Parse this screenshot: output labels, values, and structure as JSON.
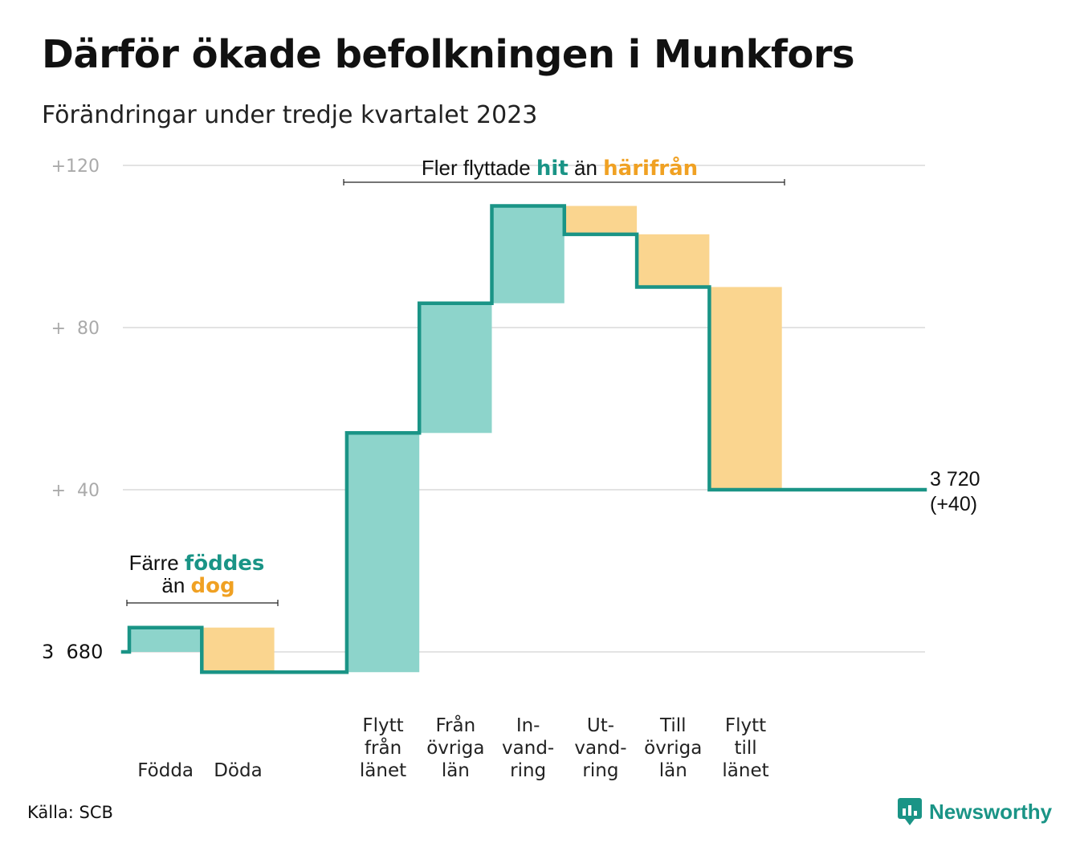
{
  "header": {
    "title": "Därför ökade befolkningen i Munkfors",
    "subtitle": "Förändringar under tredje kvartalet 2023"
  },
  "colors": {
    "inflow": "#8dd4cb",
    "outflow": "#fad58f",
    "line": "#1a9486",
    "inflow_text": "#1a9486",
    "outflow_text": "#f0a123",
    "grid": "#e3e3e3"
  },
  "chart_data": {
    "type": "waterfall",
    "base_value": 3680,
    "base_label": "3  680",
    "y_ticks": [
      {
        "value": 40,
        "label": "+  40"
      },
      {
        "value": 80,
        "label": "+  80"
      },
      {
        "value": 120,
        "label": "+120"
      }
    ],
    "ylim": [
      -5,
      122
    ],
    "steps": [
      {
        "category": [
          "Födda"
        ],
        "change": 6,
        "kind": "in"
      },
      {
        "category": [
          "Döda"
        ],
        "change": -11,
        "kind": "out"
      },
      {
        "category": [],
        "change": 0,
        "kind": "gap"
      },
      {
        "category": [
          "Flytt",
          "från",
          "länet"
        ],
        "change": 59,
        "kind": "in"
      },
      {
        "category": [
          "Från",
          "övriga",
          "län"
        ],
        "change": 32,
        "kind": "in"
      },
      {
        "category": [
          "In-",
          "vand-",
          "ring"
        ],
        "change": 24,
        "kind": "in"
      },
      {
        "category": [
          "Ut-",
          "vand-",
          "ring"
        ],
        "change": -7,
        "kind": "out"
      },
      {
        "category": [
          "Till",
          "övriga",
          "län"
        ],
        "change": -13,
        "kind": "out"
      },
      {
        "category": [
          "Flytt",
          "till",
          "länet"
        ],
        "change": -50,
        "kind": "out"
      }
    ],
    "end_value": 40,
    "end_label": {
      "line1": "3 720",
      "line2": "(+40)"
    },
    "annotations": {
      "births": {
        "line1_pre": "Färre ",
        "line1_em": "föddes",
        "line2_pre": "än ",
        "line2_em": "dog"
      },
      "migration": {
        "pre": "Fler flyttade ",
        "em1": "hit",
        "mid": " än ",
        "em2": "härifrån"
      }
    }
  },
  "footer": {
    "source": "Källa: SCB",
    "brand": "Newsworthy",
    "brand_icon": "newsworthy-logo-icon"
  }
}
